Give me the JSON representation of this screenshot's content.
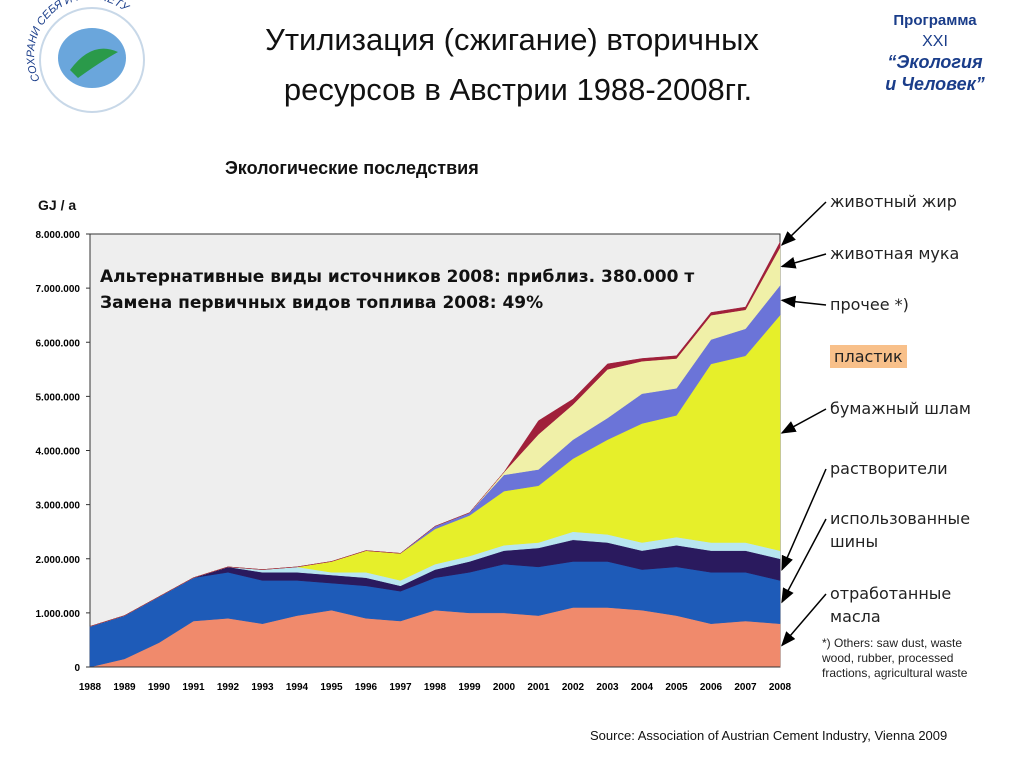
{
  "slide": {
    "title": [
      "Утилизация (сжигание) вторичных",
      "ресурсов в Австрии 1988-2008гг."
    ],
    "logo_left": "СОХРАНИ СЕБЯ И ПЛАНЕТУ",
    "logo_right": [
      "Программа",
      "XXI",
      "“Экология",
      "и Человек”"
    ],
    "subtitle": "Экологические последствия",
    "footnote": "*) Others: saw dust, waste wood, rubber, processed fractions, agricultural waste",
    "source": "Source: Association of Austrian Cement Industry, Vienna 2009"
  },
  "chart_data": {
    "type": "stacked_area",
    "y_label": "GJ / a",
    "annotations": [
      "Альтернативные виды источников 2008: приблиз. 380.000 т",
      "Замена первичных видов топлива  2008: 49%"
    ],
    "x": [
      1988,
      1989,
      1990,
      1991,
      1992,
      1993,
      1994,
      1995,
      1996,
      1997,
      1998,
      1999,
      2000,
      2001,
      2002,
      2003,
      2004,
      2005,
      2006,
      2007,
      2008
    ],
    "xlim": [
      1988,
      2008
    ],
    "ylim": [
      0,
      8000000
    ],
    "yticks": [
      0,
      {
        "value": 1000000,
        "label": "1.000.000"
      },
      {
        "value": 2000000,
        "label": "2.000.000"
      },
      {
        "value": 3000000,
        "label": "3.000.000"
      },
      {
        "value": 4000000,
        "label": "4.000.000"
      },
      {
        "value": 5000000,
        "label": "5.000.000"
      },
      {
        "value": 6000000,
        "label": "6.000.000"
      },
      {
        "value": 7000000,
        "label": "7.000.000"
      },
      {
        "value": 8000000,
        "label": "8.000.000"
      }
    ],
    "series": [
      {
        "name": "отработанные масла",
        "color": "#f08a6c",
        "values": [
          0,
          150000,
          450000,
          850000,
          900000,
          800000,
          950000,
          1050000,
          900000,
          850000,
          1050000,
          1000000,
          1000000,
          950000,
          1100000,
          1100000,
          1050000,
          950000,
          800000,
          850000,
          800000
        ]
      },
      {
        "name": "использованные шины",
        "color": "#1e5bb8",
        "values": [
          750000,
          800000,
          850000,
          800000,
          850000,
          800000,
          650000,
          500000,
          600000,
          550000,
          600000,
          750000,
          900000,
          900000,
          850000,
          850000,
          750000,
          900000,
          950000,
          900000,
          800000
        ]
      },
      {
        "name": "растворители",
        "color": "#2a1a5e",
        "values": [
          0,
          0,
          0,
          0,
          100000,
          150000,
          150000,
          150000,
          150000,
          100000,
          150000,
          200000,
          250000,
          350000,
          400000,
          350000,
          350000,
          400000,
          400000,
          400000,
          400000
        ]
      },
      {
        "name": "пластик",
        "color": "#b8e6f0",
        "values": [
          0,
          0,
          0,
          0,
          0,
          50000,
          100000,
          50000,
          100000,
          100000,
          100000,
          100000,
          100000,
          100000,
          150000,
          150000,
          150000,
          150000,
          150000,
          150000,
          150000
        ]
      },
      {
        "name": "бумажный шлам",
        "color": "#e6ef2a",
        "values": [
          0,
          0,
          0,
          0,
          0,
          0,
          0,
          200000,
          400000,
          500000,
          650000,
          750000,
          1000000,
          1050000,
          1350000,
          1750000,
          2200000,
          2250000,
          3300000,
          3450000,
          4350000
        ]
      },
      {
        "name": "прочее *)",
        "color": "#6b74d8",
        "values": [
          0,
          0,
          0,
          0,
          0,
          0,
          0,
          0,
          0,
          0,
          50000,
          50000,
          300000,
          300000,
          350000,
          400000,
          550000,
          500000,
          450000,
          500000,
          550000
        ]
      },
      {
        "name": "животная мука",
        "color": "#f0f0a8",
        "values": [
          0,
          0,
          0,
          0,
          0,
          0,
          0,
          0,
          0,
          0,
          0,
          0,
          50000,
          650000,
          650000,
          900000,
          600000,
          550000,
          450000,
          350000,
          700000
        ]
      },
      {
        "name": "животный жир",
        "color": "#a0203a",
        "values": [
          0,
          0,
          0,
          0,
          0,
          0,
          0,
          0,
          0,
          0,
          0,
          0,
          0,
          250000,
          100000,
          100000,
          50000,
          50000,
          50000,
          50000,
          100000
        ]
      }
    ]
  }
}
